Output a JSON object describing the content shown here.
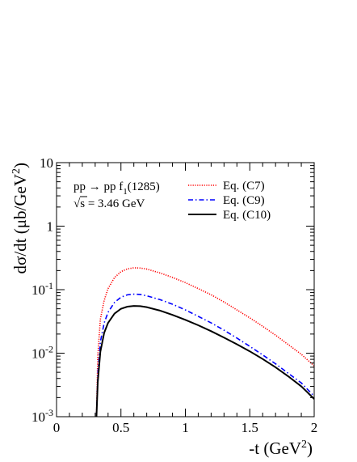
{
  "chart_data": {
    "type": "line",
    "title": "",
    "process": "pp → pp f",
    "process_sub": "1",
    "process_tail": "(1285)",
    "energy_sqrt": "√",
    "energy_rest": "s = 3.46 GeV",
    "xlabel": "-t (GeV",
    "xlabel_sup": "2",
    "xlabel_tail": ")",
    "ylabel": "dσ/dt (μb/GeV",
    "ylabel_sup": "2",
    "ylabel_tail": ")",
    "x_scale": "linear",
    "y_scale": "log",
    "xlim": [
      0,
      2
    ],
    "ylim": [
      0.001,
      10
    ],
    "x_ticks": [
      {
        "v": 0,
        "label": "0"
      },
      {
        "v": 0.5,
        "label": "0.5"
      },
      {
        "v": 1,
        "label": "1"
      },
      {
        "v": 1.5,
        "label": "1.5"
      },
      {
        "v": 2,
        "label": "2"
      }
    ],
    "y_ticks": [
      {
        "v": 0.001,
        "base": "10",
        "exp": "-3"
      },
      {
        "v": 0.01,
        "base": "10",
        "exp": "-2"
      },
      {
        "v": 0.1,
        "base": "10",
        "exp": "-1"
      },
      {
        "v": 1,
        "base": "1",
        "exp": ""
      },
      {
        "v": 10,
        "base": "10",
        "exp": ""
      }
    ],
    "grid": false,
    "legend_position": "top-right",
    "series": [
      {
        "name": "Eq. (C7)",
        "color": "#ff0000",
        "dash": "dotted",
        "points": [
          [
            0.31,
            0.001
          ],
          [
            0.32,
            0.009
          ],
          [
            0.34,
            0.034
          ],
          [
            0.37,
            0.068
          ],
          [
            0.4,
            0.104
          ],
          [
            0.45,
            0.155
          ],
          [
            0.5,
            0.192
          ],
          [
            0.55,
            0.212
          ],
          [
            0.6,
            0.221
          ],
          [
            0.65,
            0.219
          ],
          [
            0.7,
            0.211
          ],
          [
            0.8,
            0.184
          ],
          [
            0.9,
            0.156
          ],
          [
            1.0,
            0.129
          ],
          [
            1.1,
            0.104
          ],
          [
            1.2,
            0.083
          ],
          [
            1.3,
            0.064
          ],
          [
            1.4,
            0.048
          ],
          [
            1.5,
            0.036
          ],
          [
            1.6,
            0.0265
          ],
          [
            1.7,
            0.0192
          ],
          [
            1.8,
            0.0136
          ],
          [
            1.9,
            0.0096
          ],
          [
            2.0,
            0.0063
          ]
        ]
      },
      {
        "name": "Eq. (C9)",
        "color": "#0000ff",
        "dash": "dashdot",
        "points": [
          [
            0.31,
            0.001
          ],
          [
            0.32,
            0.0045
          ],
          [
            0.34,
            0.015
          ],
          [
            0.37,
            0.03
          ],
          [
            0.4,
            0.044
          ],
          [
            0.45,
            0.063
          ],
          [
            0.5,
            0.076
          ],
          [
            0.55,
            0.083
          ],
          [
            0.6,
            0.085
          ],
          [
            0.65,
            0.084
          ],
          [
            0.7,
            0.08
          ],
          [
            0.8,
            0.07
          ],
          [
            0.9,
            0.059
          ],
          [
            1.0,
            0.048
          ],
          [
            1.1,
            0.038
          ],
          [
            1.2,
            0.03
          ],
          [
            1.3,
            0.023
          ],
          [
            1.4,
            0.0173
          ],
          [
            1.5,
            0.0128
          ],
          [
            1.6,
            0.0094
          ],
          [
            1.7,
            0.0068
          ],
          [
            1.8,
            0.0048
          ],
          [
            1.9,
            0.0034
          ],
          [
            2.0,
            0.0021
          ]
        ]
      },
      {
        "name": "Eq. (C10)",
        "color": "#000000",
        "dash": "solid",
        "points": [
          [
            0.31,
            0.001
          ],
          [
            0.32,
            0.0035
          ],
          [
            0.34,
            0.0105
          ],
          [
            0.37,
            0.021
          ],
          [
            0.4,
            0.03
          ],
          [
            0.45,
            0.042
          ],
          [
            0.5,
            0.05
          ],
          [
            0.55,
            0.054
          ],
          [
            0.6,
            0.0555
          ],
          [
            0.65,
            0.055
          ],
          [
            0.7,
            0.053
          ],
          [
            0.8,
            0.047
          ],
          [
            0.9,
            0.04
          ],
          [
            1.0,
            0.0335
          ],
          [
            1.1,
            0.0275
          ],
          [
            1.2,
            0.0222
          ],
          [
            1.3,
            0.0176
          ],
          [
            1.4,
            0.0138
          ],
          [
            1.5,
            0.0107
          ],
          [
            1.6,
            0.0081
          ],
          [
            1.7,
            0.006
          ],
          [
            1.8,
            0.0043
          ],
          [
            1.9,
            0.003
          ],
          [
            2.0,
            0.0019
          ]
        ]
      }
    ]
  }
}
